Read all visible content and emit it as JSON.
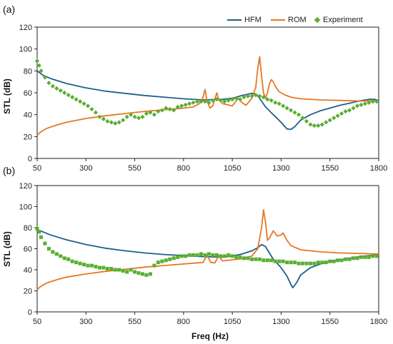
{
  "chart_data": [
    {
      "type": "line",
      "panel_label": "(a)",
      "xlabel": "",
      "ylabel": "STL (dB)",
      "xlim": [
        50,
        1800
      ],
      "ylim": [
        0,
        120
      ],
      "xticks": [
        "50",
        "300",
        "550",
        "800",
        "1050",
        "1300",
        "1550",
        "1800"
      ],
      "yticks": [
        "0",
        "20",
        "40",
        "60",
        "80",
        "100",
        "120"
      ],
      "legend_position": "top-right",
      "series": [
        {
          "name": "HFM",
          "color": "#1f5f8b",
          "style": "line",
          "x": [
            50,
            80,
            120,
            200,
            300,
            400,
            500,
            600,
            700,
            800,
            900,
            1000,
            1050,
            1100,
            1150,
            1170,
            1190,
            1220,
            1260,
            1300,
            1330,
            1350,
            1370,
            1400,
            1450,
            1500,
            1550,
            1600,
            1650,
            1700,
            1750,
            1780,
            1800
          ],
          "y": [
            80,
            76,
            73,
            68.5,
            64.5,
            61.5,
            59.5,
            57.5,
            56,
            54.5,
            53.5,
            54,
            55,
            57.5,
            59.5,
            59,
            55,
            47,
            40,
            33,
            27,
            26.5,
            29,
            35,
            40,
            43.5,
            46,
            48.5,
            50.5,
            52.5,
            54,
            54,
            53
          ]
        },
        {
          "name": "ROM",
          "color": "#e87722",
          "style": "line",
          "x": [
            50,
            60,
            80,
            100,
            150,
            200,
            300,
            400,
            500,
            600,
            700,
            800,
            850,
            880,
            900,
            910,
            920,
            935,
            950,
            970,
            980,
            1000,
            1050,
            1080,
            1100,
            1120,
            1150,
            1170,
            1180,
            1190,
            1200,
            1210,
            1220,
            1230,
            1240,
            1250,
            1260,
            1270,
            1290,
            1320,
            1350,
            1400,
            1500,
            1600,
            1700,
            1800
          ],
          "y": [
            21,
            23,
            25.5,
            27.5,
            30.5,
            33,
            36.5,
            39,
            41,
            43,
            44.5,
            46,
            47,
            50,
            56,
            63,
            53,
            46,
            48,
            60,
            54,
            50,
            48,
            55,
            51,
            48.5,
            55,
            65,
            82,
            93,
            75,
            60,
            55,
            60,
            68,
            72,
            70,
            66,
            61,
            58,
            56,
            54.5,
            53.5,
            53,
            52.5,
            52.5
          ]
        },
        {
          "name": "Experiment",
          "color": "#5aae32",
          "style": "points",
          "x": [
            50,
            60,
            70,
            90,
            110,
            130,
            150,
            170,
            190,
            210,
            230,
            250,
            270,
            290,
            310,
            330,
            350,
            370,
            390,
            410,
            430,
            450,
            470,
            490,
            510,
            530,
            550,
            570,
            590,
            610,
            630,
            650,
            670,
            690,
            710,
            730,
            750,
            770,
            790,
            810,
            830,
            850,
            870,
            890,
            910,
            930,
            950,
            970,
            990,
            1010,
            1030,
            1050,
            1070,
            1090,
            1110,
            1130,
            1150,
            1170,
            1190,
            1210,
            1230,
            1250,
            1270,
            1290,
            1310,
            1330,
            1350,
            1370,
            1390,
            1410,
            1430,
            1450,
            1470,
            1490,
            1510,
            1530,
            1550,
            1570,
            1590,
            1610,
            1630,
            1650,
            1670,
            1690,
            1710,
            1730,
            1750,
            1770,
            1790
          ],
          "y": [
            89,
            85,
            80,
            74,
            69,
            66,
            64,
            62,
            60,
            58,
            56,
            54,
            52,
            50,
            48,
            45,
            42,
            38,
            36,
            34,
            33,
            32,
            33,
            35,
            38,
            40,
            38,
            37,
            38,
            41,
            42,
            40,
            43,
            44,
            46,
            45,
            44,
            47,
            48,
            49,
            50,
            51,
            52,
            52,
            52,
            51,
            53,
            54,
            53,
            52,
            53,
            54,
            55,
            54,
            56,
            57,
            57,
            58,
            57,
            56,
            54,
            53,
            51,
            50,
            48,
            46,
            44,
            42,
            40,
            37,
            34,
            31,
            30,
            30,
            31,
            33,
            35,
            37,
            39,
            41,
            43,
            44,
            46,
            48,
            49,
            50,
            51,
            52,
            52
          ]
        }
      ]
    },
    {
      "type": "line",
      "panel_label": "(b)",
      "xlabel": "Freq (Hz)",
      "ylabel": "STL (dB)",
      "xlim": [
        50,
        1800
      ],
      "ylim": [
        0,
        120
      ],
      "xticks": [
        "50",
        "300",
        "550",
        "800",
        "1050",
        "1300",
        "1550",
        "1800"
      ],
      "yticks": [
        "0",
        "20",
        "40",
        "60",
        "80",
        "100",
        "120"
      ],
      "series": [
        {
          "name": "HFM",
          "color": "#1f5f8b",
          "style": "line",
          "x": [
            50,
            80,
            120,
            200,
            300,
            400,
            500,
            600,
            700,
            800,
            900,
            1000,
            1050,
            1100,
            1150,
            1180,
            1200,
            1220,
            1240,
            1260,
            1280,
            1300,
            1330,
            1350,
            1360,
            1380,
            1400,
            1450,
            1500,
            1550,
            1600,
            1650,
            1700,
            1750,
            1800
          ],
          "y": [
            78,
            76,
            73,
            68.5,
            64,
            60.5,
            58,
            56,
            54.5,
            53.5,
            52.5,
            52,
            53,
            55,
            58,
            61,
            64,
            62,
            56,
            50,
            46,
            42,
            34,
            26,
            23,
            28,
            35,
            42,
            45.5,
            47.5,
            49.5,
            51,
            52.5,
            53.5,
            54.5
          ]
        },
        {
          "name": "ROM",
          "color": "#e87722",
          "style": "line",
          "x": [
            50,
            60,
            80,
            100,
            150,
            200,
            300,
            400,
            500,
            600,
            700,
            800,
            900,
            920,
            940,
            960,
            980,
            1000,
            1050,
            1100,
            1150,
            1180,
            1200,
            1210,
            1220,
            1230,
            1240,
            1260,
            1280,
            1300,
            1310,
            1330,
            1350,
            1400,
            1500,
            1600,
            1700,
            1800
          ],
          "y": [
            21,
            23,
            25.5,
            27.5,
            30.5,
            33,
            36,
            38.5,
            40.5,
            42.5,
            44,
            45.5,
            47,
            54,
            47,
            46.5,
            53,
            48.5,
            49.5,
            50.5,
            53,
            60,
            80,
            97,
            85,
            68,
            70,
            77,
            72,
            73,
            75,
            68,
            63,
            59,
            57,
            56,
            55.5,
            55
          ]
        },
        {
          "name": "Experiment",
          "color": "#5aae32",
          "style": "points",
          "x": [
            50,
            60,
            70,
            90,
            110,
            130,
            150,
            170,
            190,
            210,
            230,
            250,
            270,
            290,
            310,
            330,
            350,
            370,
            390,
            410,
            430,
            450,
            470,
            490,
            510,
            530,
            550,
            570,
            590,
            610,
            630,
            650,
            670,
            690,
            710,
            730,
            750,
            770,
            790,
            810,
            830,
            850,
            870,
            890,
            910,
            930,
            950,
            970,
            990,
            1010,
            1030,
            1050,
            1070,
            1090,
            1110,
            1130,
            1150,
            1170,
            1190,
            1210,
            1230,
            1250,
            1270,
            1290,
            1310,
            1330,
            1350,
            1370,
            1390,
            1410,
            1430,
            1450,
            1470,
            1490,
            1510,
            1530,
            1550,
            1570,
            1590,
            1610,
            1630,
            1650,
            1670,
            1690,
            1710,
            1730,
            1750,
            1770,
            1790
          ],
          "y": [
            79,
            76,
            71,
            65,
            60,
            57,
            55,
            53,
            51,
            50,
            48,
            47,
            46,
            45,
            44,
            44,
            43,
            42,
            42,
            41,
            41,
            40,
            40,
            39,
            38,
            40,
            38,
            37,
            36,
            35,
            36,
            44,
            47,
            48,
            49,
            50,
            51,
            52,
            53,
            53,
            54,
            54,
            54,
            55,
            54,
            55,
            54,
            54,
            53,
            53,
            54,
            53,
            52,
            52,
            51,
            51,
            50,
            50,
            50,
            49,
            49,
            49,
            48,
            48,
            48,
            47,
            47,
            47,
            46,
            46,
            46,
            46,
            46,
            47,
            47,
            47,
            48,
            48,
            49,
            49,
            50,
            50,
            51,
            51,
            52,
            52,
            52,
            53,
            53
          ]
        }
      ]
    }
  ]
}
